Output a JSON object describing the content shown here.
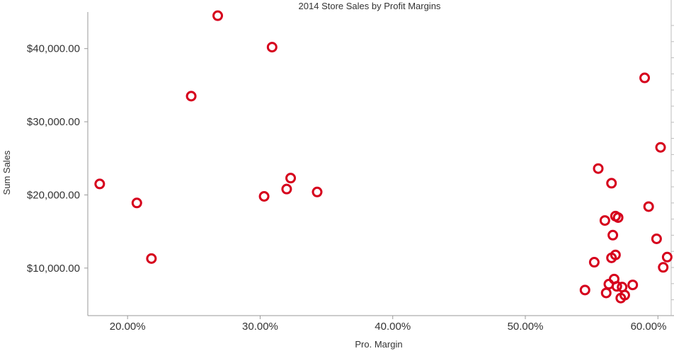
{
  "chart_data": {
    "type": "scatter",
    "title": "2014 Store Sales by Profit Margins",
    "xlabel": "Pro. Margin",
    "ylabel": "Sum Sales",
    "xlim": [
      0.17,
      0.61
    ],
    "ylim": [
      3500,
      45000
    ],
    "x_ticks": [
      0.2,
      0.3,
      0.4,
      0.5,
      0.6
    ],
    "x_tick_labels": [
      "20.00%",
      "30.00%",
      "40.00%",
      "50.00%",
      "60.00%"
    ],
    "y_ticks": [
      10000,
      20000,
      30000,
      40000
    ],
    "y_tick_labels": [
      "$10,000.00",
      "$20,000.00",
      "$30,000.00",
      "$40,000.00"
    ],
    "grid": false,
    "marker": "hollow-circle",
    "marker_color": "#d6001c",
    "points": [
      {
        "x": 0.179,
        "y": 21500
      },
      {
        "x": 0.207,
        "y": 18900
      },
      {
        "x": 0.218,
        "y": 11300
      },
      {
        "x": 0.248,
        "y": 33500
      },
      {
        "x": 0.268,
        "y": 44500
      },
      {
        "x": 0.303,
        "y": 19800
      },
      {
        "x": 0.309,
        "y": 40200
      },
      {
        "x": 0.32,
        "y": 20800
      },
      {
        "x": 0.323,
        "y": 22300
      },
      {
        "x": 0.343,
        "y": 20400
      },
      {
        "x": 0.545,
        "y": 7000
      },
      {
        "x": 0.552,
        "y": 10800
      },
      {
        "x": 0.555,
        "y": 23600
      },
      {
        "x": 0.56,
        "y": 16500
      },
      {
        "x": 0.561,
        "y": 6600
      },
      {
        "x": 0.563,
        "y": 7800
      },
      {
        "x": 0.565,
        "y": 21600
      },
      {
        "x": 0.565,
        "y": 11400
      },
      {
        "x": 0.566,
        "y": 14500
      },
      {
        "x": 0.567,
        "y": 8500
      },
      {
        "x": 0.568,
        "y": 11800
      },
      {
        "x": 0.568,
        "y": 17100
      },
      {
        "x": 0.569,
        "y": 7500
      },
      {
        "x": 0.57,
        "y": 16900
      },
      {
        "x": 0.572,
        "y": 5900
      },
      {
        "x": 0.573,
        "y": 7400
      },
      {
        "x": 0.575,
        "y": 6300
      },
      {
        "x": 0.581,
        "y": 7700
      },
      {
        "x": 0.59,
        "y": 36000
      },
      {
        "x": 0.593,
        "y": 18400
      },
      {
        "x": 0.599,
        "y": 14000
      },
      {
        "x": 0.602,
        "y": 26500
      },
      {
        "x": 0.604,
        "y": 10100
      },
      {
        "x": 0.607,
        "y": 11500
      }
    ]
  }
}
